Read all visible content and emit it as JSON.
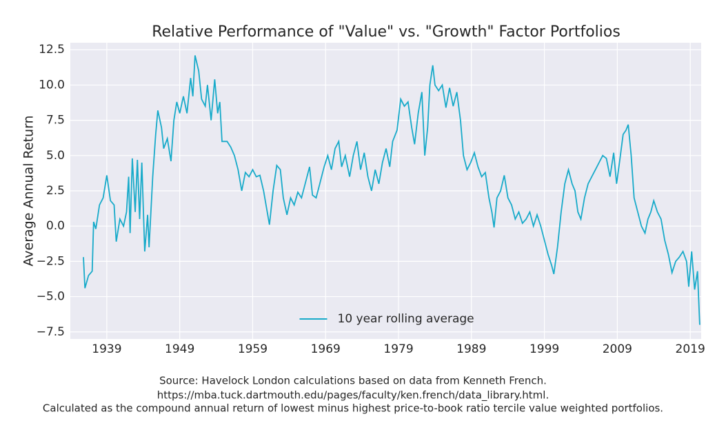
{
  "chart_data": {
    "type": "line",
    "title": "Relative Performance of \"Value\" vs. \"Growth\" Factor Portfolios",
    "ylabel": "Average Annual Return",
    "notes": [
      "Source: Havelock London calculations based on data from Kenneth French.",
      "https://mba.tuck.dartmouth.edu/pages/faculty/ken.french/data_library.html.",
      "Calculated as the compound annual return of lowest minus highest price-to-book ratio tercile value weighted portfolios."
    ],
    "xlim": [
      1934,
      2020.5
    ],
    "xticks": [
      1939,
      1949,
      1959,
      1969,
      1979,
      1989,
      1999,
      2009,
      2019
    ],
    "ylim": [
      -8,
      13
    ],
    "yticks": [
      {
        "value": -7.5,
        "label": "−7.5"
      },
      {
        "value": -5,
        "label": "−5.0"
      },
      {
        "value": -2.5,
        "label": "−2.5"
      },
      {
        "value": 0,
        "label": "0.0"
      },
      2.5,
      {
        "value": 5,
        "label": "5.0"
      },
      7.5,
      {
        "value": 10,
        "label": "10.0"
      },
      12.5
    ],
    "grid": true,
    "legend": "lower center",
    "x": [
      1935.8,
      1936.0,
      1936.5,
      1937.0,
      1937.2,
      1937.5,
      1938,
      1938.5,
      1939,
      1939.5,
      1940,
      1940.3,
      1940.8,
      1941.3,
      1941.7,
      1942,
      1942.2,
      1942.5,
      1942.9,
      1943.2,
      1943.5,
      1943.8,
      1944.2,
      1944.6,
      1944.8,
      1945.3,
      1945.7,
      1946,
      1946.5,
      1946.8,
      1947.3,
      1947.8,
      1948.2,
      1948.6,
      1949.0,
      1949.5,
      1950,
      1950.5,
      1950.8,
      1951.1,
      1951.6,
      1952,
      1952.5,
      1952.8,
      1953.3,
      1953.8,
      1954.2,
      1954.5,
      1954.8,
      1955.5,
      1956,
      1956.5,
      1957,
      1957.5,
      1958,
      1958.5,
      1959,
      1959.5,
      1960,
      1960.5,
      1961,
      1961.3,
      1961.8,
      1962.3,
      1962.8,
      1963.2,
      1963.7,
      1964.2,
      1964.7,
      1965.2,
      1965.7,
      1966.2,
      1966.8,
      1967.2,
      1967.7,
      1968.2,
      1968.8,
      1969.3,
      1969.8,
      1970.3,
      1970.8,
      1971.2,
      1971.7,
      1972.3,
      1972.8,
      1973.3,
      1973.8,
      1974.3,
      1974.8,
      1975.3,
      1975.8,
      1976.3,
      1976.8,
      1977.3,
      1977.8,
      1978.2,
      1978.8,
      1979.3,
      1979.8,
      1980.3,
      1980.8,
      1981.2,
      1981.7,
      1982.2,
      1982.6,
      1983,
      1983.3,
      1983.7,
      1984,
      1984.5,
      1985,
      1985.5,
      1986,
      1986.5,
      1987,
      1987.5,
      1987.9,
      1988.4,
      1988.9,
      1989.4,
      1989.9,
      1990.4,
      1990.9,
      1991.4,
      1991.8,
      1992.1,
      1992.5,
      1993,
      1993.5,
      1994,
      1994.5,
      1995,
      1995.5,
      1996,
      1996.5,
      1997,
      1997.5,
      1998,
      1998.5,
      1999,
      1999.5,
      2000,
      2000.3,
      2000.8,
      2001.3,
      2001.8,
      2002.3,
      2002.8,
      2003.2,
      2003.6,
      2004,
      2004.5,
      2005,
      2005.5,
      2006,
      2006.5,
      2007,
      2007.5,
      2008,
      2008.5,
      2008.9,
      2009.3,
      2009.8,
      2010.2,
      2010.5,
      2010.9,
      2011.3,
      2011.8,
      2012.3,
      2012.8,
      2013.2,
      2013.6,
      2014,
      2014.5,
      2015,
      2015.5,
      2016,
      2016.5,
      2017,
      2017.5,
      2018,
      2018.5,
      2018.8,
      2019.2,
      2019.6,
      2020.0,
      2020.3
    ],
    "series": [
      {
        "name": "10 year rolling average",
        "color": "#17aac9",
        "values": [
          -2.2,
          -4.4,
          -3.5,
          -3.2,
          0.3,
          -0.2,
          1.5,
          2.0,
          3.6,
          1.8,
          1.5,
          -1.1,
          0.5,
          0.0,
          1.0,
          3.5,
          -0.5,
          4.8,
          1.0,
          4.7,
          0.5,
          4.5,
          -1.8,
          0.8,
          -1.5,
          3.5,
          6.5,
          8.2,
          7.0,
          5.5,
          6.2,
          4.6,
          7.5,
          8.8,
          8.0,
          9.2,
          8.0,
          10.5,
          9.2,
          12.1,
          11.0,
          9.0,
          8.5,
          10.0,
          7.5,
          10.4,
          8.0,
          8.8,
          6.0,
          6.0,
          5.6,
          5.0,
          4.0,
          2.5,
          3.8,
          3.5,
          4.0,
          3.5,
          3.6,
          2.5,
          1.0,
          0.1,
          2.5,
          4.3,
          4.0,
          2.0,
          0.8,
          2.0,
          1.5,
          2.4,
          2.0,
          3.0,
          4.2,
          2.2,
          2.0,
          3.0,
          4.2,
          5.0,
          4.0,
          5.5,
          6.0,
          4.2,
          5.0,
          3.5,
          5.0,
          6.0,
          4.0,
          5.2,
          3.5,
          2.5,
          4.0,
          3.0,
          4.5,
          5.5,
          4.2,
          6.0,
          6.8,
          9.0,
          8.5,
          8.8,
          7.0,
          5.8,
          8.0,
          9.5,
          5.0,
          7.0,
          10.0,
          11.4,
          10.0,
          9.6,
          10.0,
          8.4,
          9.8,
          8.5,
          9.5,
          7.5,
          5.0,
          4.0,
          4.5,
          5.2,
          4.2,
          3.5,
          3.8,
          2.0,
          1.0,
          -0.1,
          2.0,
          2.5,
          3.6,
          2.0,
          1.5,
          0.5,
          1.0,
          0.2,
          0.5,
          1.0,
          0.0,
          0.8,
          0.0,
          -1.0,
          -2.0,
          -2.8,
          -3.4,
          -1.5,
          1.0,
          3.0,
          4.0,
          3.0,
          2.5,
          1.0,
          0.5,
          2.0,
          3.0,
          3.5,
          4.0,
          4.5,
          5.0,
          4.8,
          3.5,
          5.2,
          3.0,
          4.5,
          6.5,
          6.8,
          7.2,
          5.0,
          2.0,
          1.0,
          0.0,
          -0.5,
          0.5,
          1.0,
          1.8,
          1.0,
          0.5,
          -1.0,
          -2.0,
          -3.3,
          -2.5,
          -2.2,
          -1.8,
          -2.5,
          -4.3,
          -1.8,
          -4.5,
          -3.2,
          -7.0
        ]
      }
    ]
  }
}
